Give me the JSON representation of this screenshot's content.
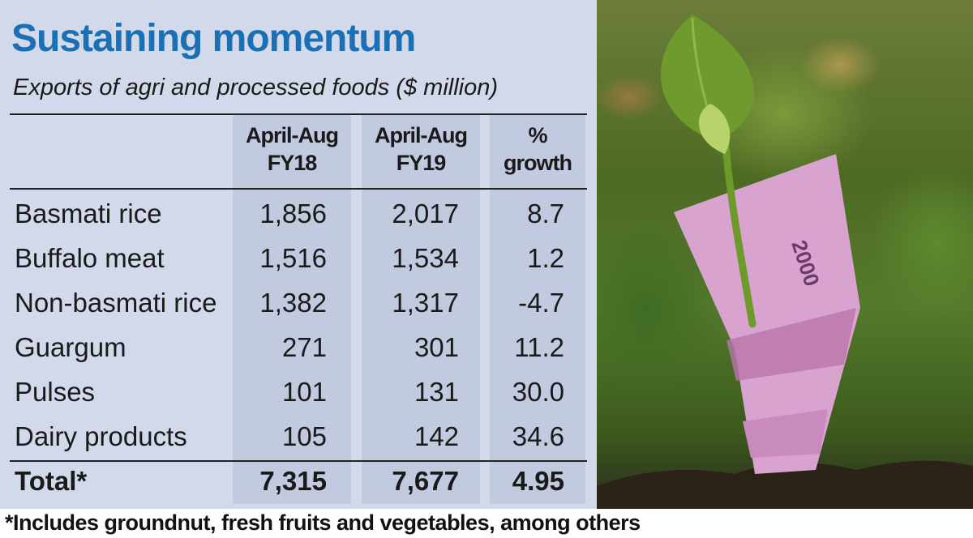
{
  "chart_data": {
    "type": "table",
    "title": "Sustaining momentum",
    "subtitle": "Exports of agri and processed foods ($ million)",
    "columns": [
      {
        "line1": "April-Aug",
        "line2": "FY18"
      },
      {
        "line1": "April-Aug",
        "line2": "FY19"
      },
      {
        "line1": "%",
        "line2": "growth"
      }
    ],
    "rows": [
      {
        "label": "Basmati rice",
        "fy18": "1,856",
        "fy19": "2,017",
        "growth": "8.7"
      },
      {
        "label": "Buffalo meat",
        "fy18": "1,516",
        "fy19": "1,534",
        "growth": "1.2"
      },
      {
        "label": "Non-basmati rice",
        "fy18": "1,382",
        "fy19": "1,317",
        "growth": "-4.7"
      },
      {
        "label": "Guargum",
        "fy18": "271",
        "fy19": "301",
        "growth": "11.2"
      },
      {
        "label": "Pulses",
        "fy18": "101",
        "fy19": "131",
        "growth": "30.0"
      },
      {
        "label": "Dairy products",
        "fy18": "105",
        "fy19": "142",
        "growth": "34.6"
      }
    ],
    "total": {
      "label": "Total*",
      "fy18": "7,315",
      "fy19": "7,677",
      "growth": "4.95"
    },
    "footnote": "*Includes groundnut, fresh fruits and vegetables, among others"
  },
  "colors": {
    "panel_background": "#d2d9ea",
    "column_shade": "#c2cae0",
    "title": "#1b6fb5",
    "note_purple": "#c58ab8"
  },
  "photo": {
    "subject": "sapling growing from rolled 2000 rupee note in soil",
    "note_text": "2000"
  }
}
